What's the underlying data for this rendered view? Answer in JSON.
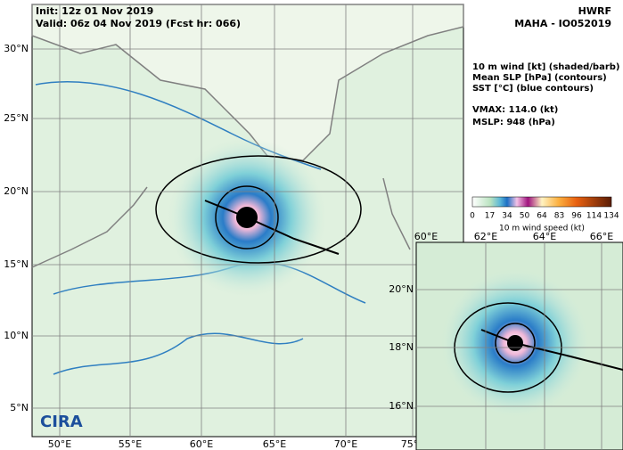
{
  "header": {
    "init": "Init: 12z 01 Nov 2019",
    "valid": "Valid: 06z 04 Nov 2019 (Fcst hr: 066)",
    "model": "HWRF",
    "storm": "MAHA - IO052019"
  },
  "legend": {
    "lines": [
      "10 m wind [kt] (shaded/barb)",
      "Mean SLP [hPa] (contours)",
      "SST [°C] (blue contours)"
    ],
    "vmax": "VMAX: 114.0 (kt)",
    "mslp": "MSLP:  948 (hPa)"
  },
  "colorbar": {
    "ticks": [
      "0",
      "17",
      "34",
      "50",
      "64",
      "83",
      "96",
      "114",
      "134"
    ],
    "label": "10 m wind speed (kt)"
  },
  "main_map": {
    "lat_labels": [
      "30°N",
      "25°N",
      "20°N",
      "15°N",
      "10°N",
      "5°N"
    ],
    "lon_labels": [
      "50°E",
      "55°E",
      "60°E",
      "65°E",
      "70°E",
      "75°E"
    ]
  },
  "inset": {
    "lon_labels": [
      "60°E",
      "62°E",
      "64°E",
      "66°E"
    ],
    "lat_labels": [
      "20°N",
      "18°N",
      "16°N"
    ]
  },
  "logo": "CIRA"
}
